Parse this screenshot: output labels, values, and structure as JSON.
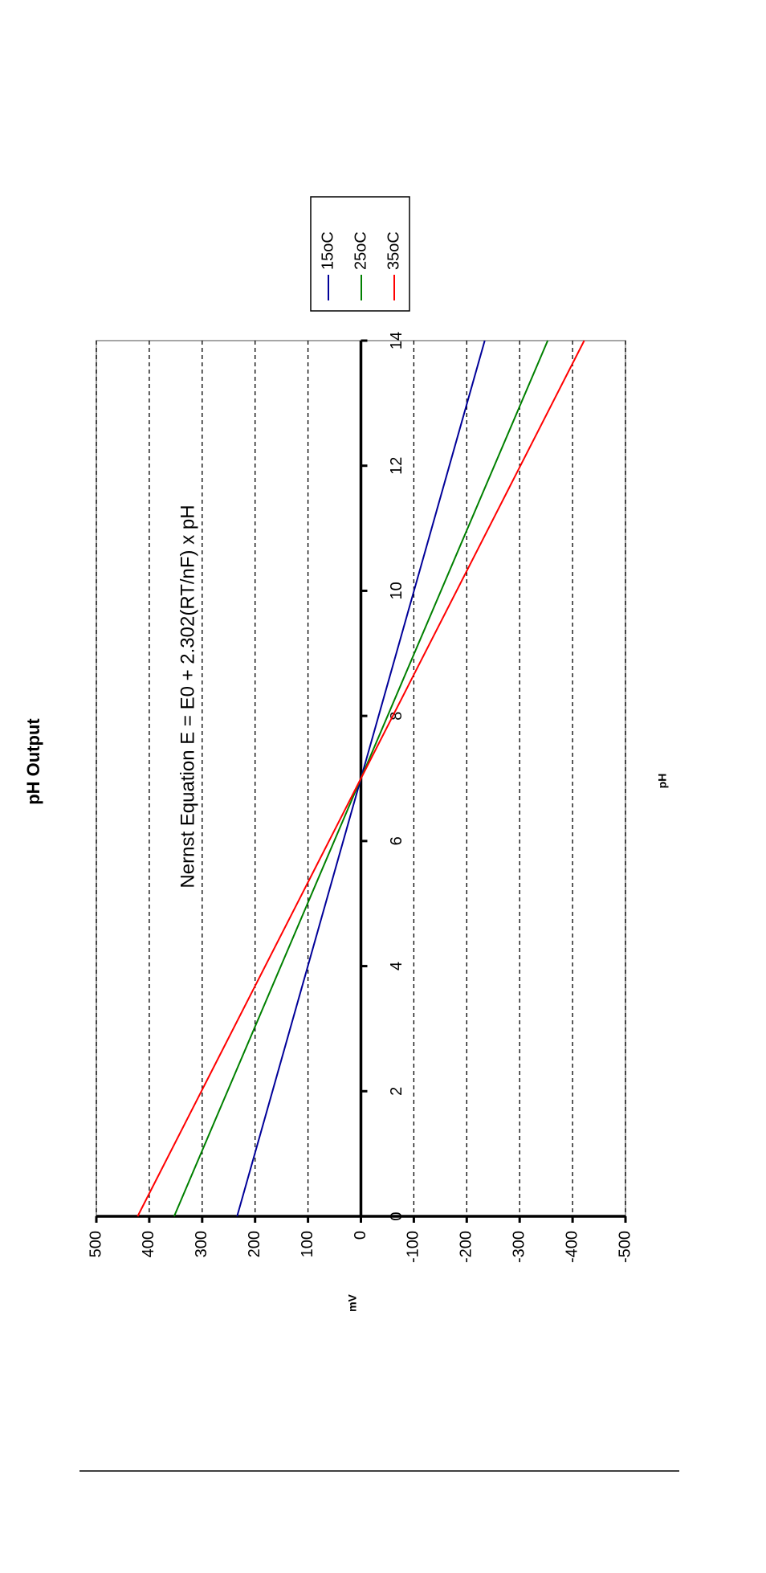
{
  "chart_data": {
    "type": "line",
    "title": "pH Output",
    "annotation": "Nernst Equation E = E0 + 2.302(RT/nF) x pH",
    "x_label": "pH",
    "y_label": "mV",
    "x": [
      0,
      7,
      14
    ],
    "series": [
      {
        "name": "15oC",
        "color": "#000099",
        "values": [
          234,
          0,
          -234
        ]
      },
      {
        "name": "25oC",
        "color": "#008000",
        "values": [
          353,
          0,
          -353
        ]
      },
      {
        "name": "35oC",
        "color": "#ff0000",
        "values": [
          422,
          0,
          -422
        ]
      }
    ],
    "xlim": [
      0,
      14
    ],
    "xticks": [
      0,
      2,
      4,
      6,
      8,
      10,
      12,
      14
    ],
    "ylim": [
      -500,
      500
    ],
    "yticks": [
      -500,
      -400,
      -300,
      -200,
      -100,
      0,
      100,
      200,
      300,
      400,
      500
    ],
    "grid": true
  }
}
